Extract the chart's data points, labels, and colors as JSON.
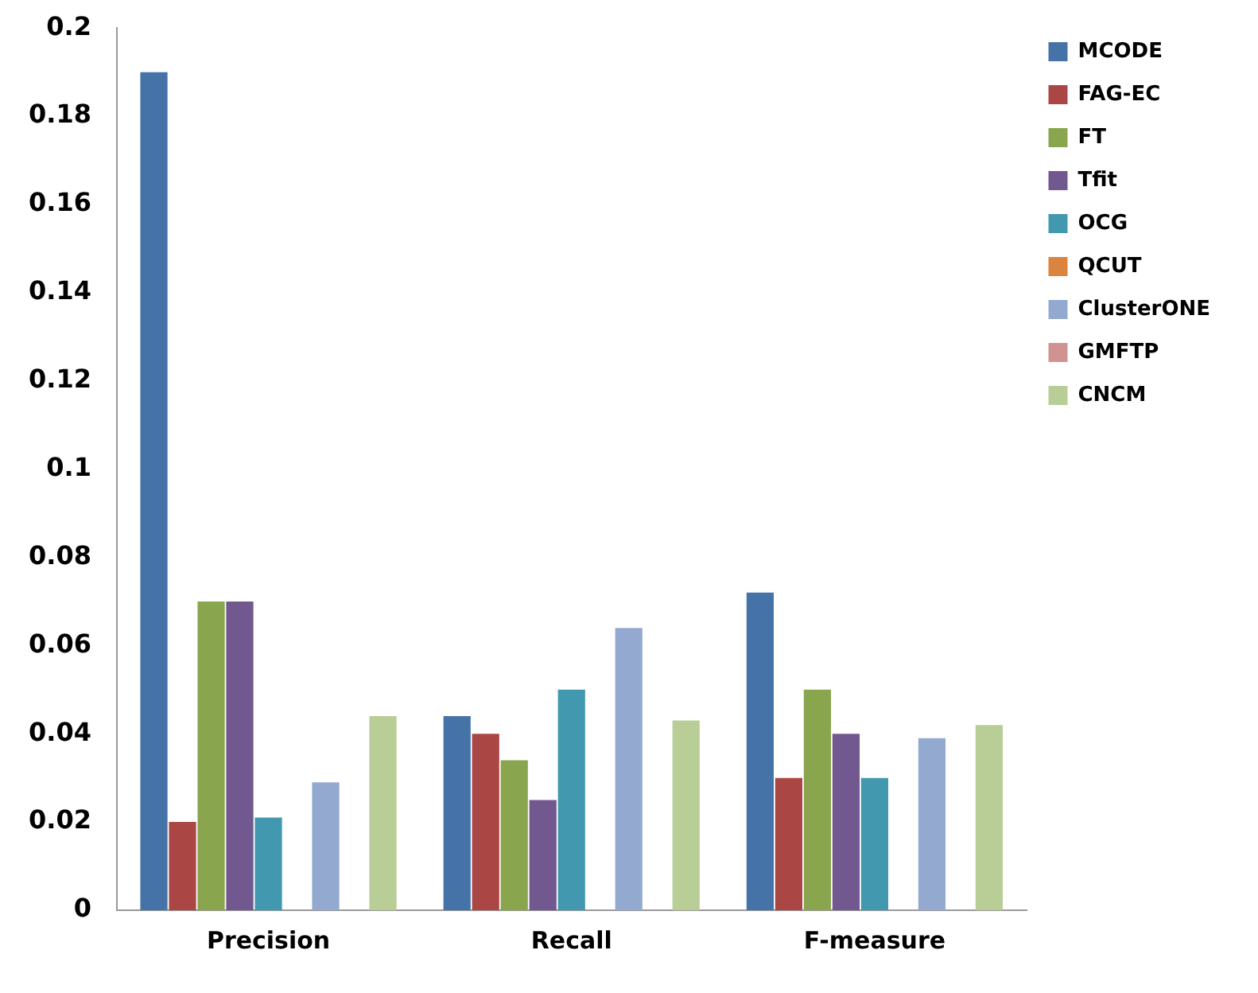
{
  "chart_data": {
    "type": "bar",
    "categories": [
      "Precision",
      "Recall",
      "F-measure"
    ],
    "series": [
      {
        "name": "MCODE",
        "color": "#4572a7",
        "values": [
          0.19,
          0.044,
          0.072
        ]
      },
      {
        "name": "FAG-EC",
        "color": "#aa4643",
        "values": [
          0.02,
          0.04,
          0.03
        ]
      },
      {
        "name": "FT",
        "color": "#89a54e",
        "values": [
          0.07,
          0.034,
          0.05
        ]
      },
      {
        "name": "Tfit",
        "color": "#71588f",
        "values": [
          0.07,
          0.025,
          0.04
        ]
      },
      {
        "name": "OCG",
        "color": "#4198af",
        "values": [
          0.021,
          0.05,
          0.03
        ]
      },
      {
        "name": "QCUT",
        "color": "#db843d",
        "values": [
          0,
          0,
          0
        ]
      },
      {
        "name": "ClusterONE",
        "color": "#93a9cf",
        "values": [
          0.029,
          0.064,
          0.039
        ]
      },
      {
        "name": "GMFTP",
        "color": "#d19392",
        "values": [
          0,
          0,
          0
        ]
      },
      {
        "name": "CNCM",
        "color": "#b9cd96",
        "values": [
          0.044,
          0.043,
          0.042
        ]
      }
    ],
    "ylim": [
      0,
      0.2
    ],
    "yticks": [
      0,
      0.02,
      0.04,
      0.06,
      0.08,
      0.1,
      0.12,
      0.14,
      0.16,
      0.18,
      0.2
    ],
    "grid": false,
    "legend": "right"
  }
}
